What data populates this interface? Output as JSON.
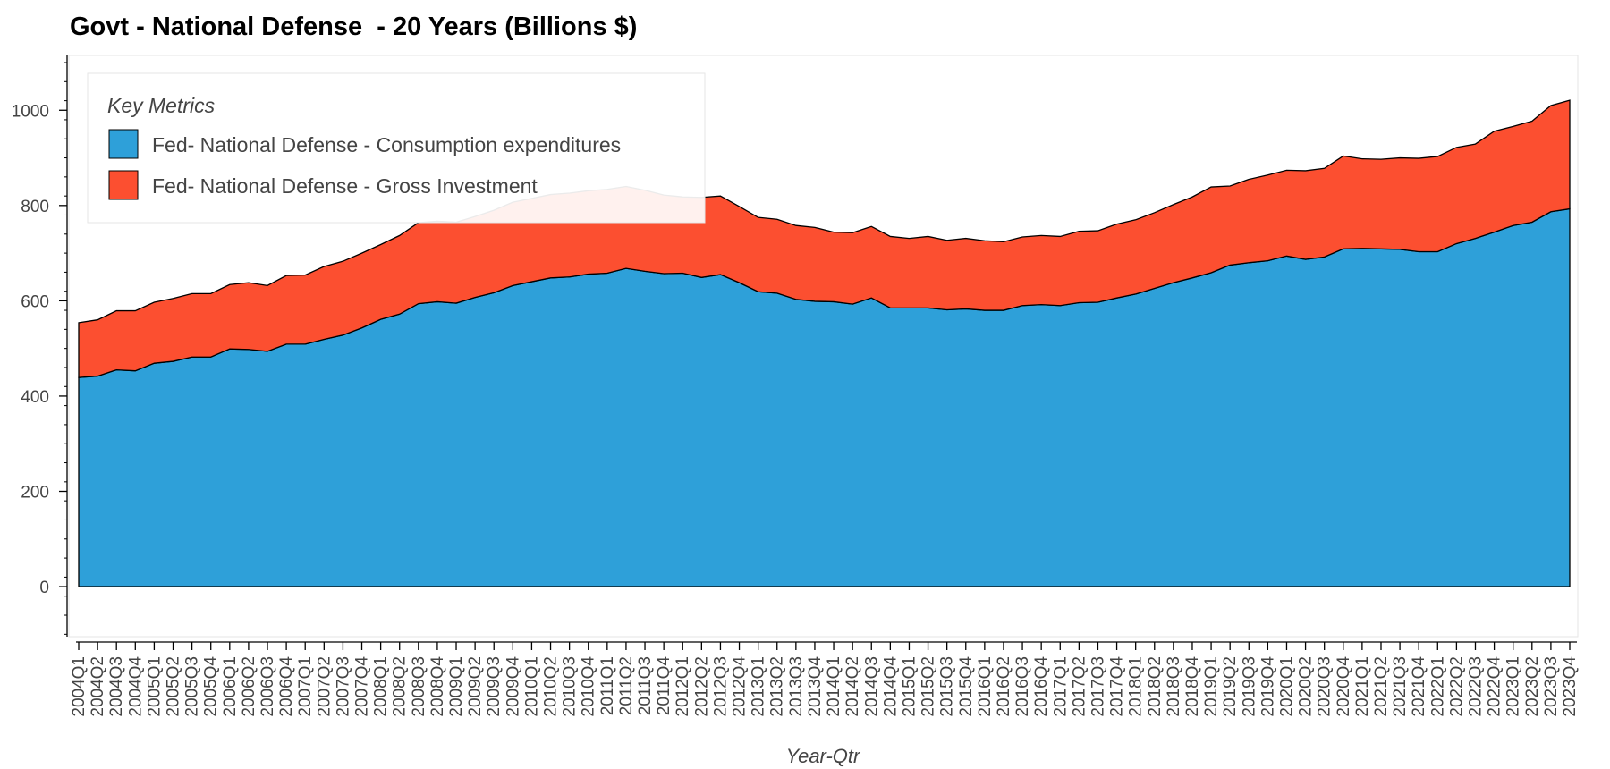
{
  "chart_data": {
    "type": "area",
    "stacked": true,
    "title": "Govt - National Defense  - 20 Years (Billions $)",
    "xlabel": "Year-Qtr",
    "ylabel": "",
    "ylim": [
      -105,
      1115
    ],
    "yticks": [
      0,
      200,
      400,
      600,
      800,
      1000
    ],
    "grid": false,
    "legend": {
      "title": "Key Metrics",
      "placement": "top-left"
    },
    "categories": [
      "2004Q1",
      "2004Q2",
      "2004Q3",
      "2004Q4",
      "2005Q1",
      "2005Q2",
      "2005Q3",
      "2005Q4",
      "2006Q1",
      "2006Q2",
      "2006Q3",
      "2006Q4",
      "2007Q1",
      "2007Q2",
      "2007Q3",
      "2007Q4",
      "2008Q1",
      "2008Q2",
      "2008Q3",
      "2008Q4",
      "2009Q1",
      "2009Q2",
      "2009Q3",
      "2009Q4",
      "2010Q1",
      "2010Q2",
      "2010Q3",
      "2010Q4",
      "2011Q1",
      "2011Q2",
      "2011Q3",
      "2011Q4",
      "2012Q1",
      "2012Q2",
      "2012Q3",
      "2012Q4",
      "2013Q1",
      "2013Q2",
      "2013Q3",
      "2013Q4",
      "2014Q1",
      "2014Q2",
      "2014Q3",
      "2014Q4",
      "2015Q1",
      "2015Q2",
      "2015Q3",
      "2015Q4",
      "2016Q1",
      "2016Q2",
      "2016Q3",
      "2016Q4",
      "2017Q1",
      "2017Q2",
      "2017Q3",
      "2017Q4",
      "2018Q1",
      "2018Q2",
      "2018Q3",
      "2018Q4",
      "2019Q1",
      "2019Q2",
      "2019Q3",
      "2019Q4",
      "2020Q1",
      "2020Q2",
      "2020Q3",
      "2020Q4",
      "2021Q1",
      "2021Q2",
      "2021Q3",
      "2021Q4",
      "2022Q1",
      "2022Q2",
      "2022Q3",
      "2022Q4",
      "2023Q1",
      "2023Q2",
      "2023Q3",
      "2023Q4"
    ],
    "series": [
      {
        "name": "Fed- National Defense - Consumption expenditures",
        "color": "#2ea0d9",
        "values": [
          439,
          442,
          455,
          453,
          469,
          473,
          482,
          482,
          499,
          498,
          494,
          509,
          509,
          519,
          528,
          543,
          561,
          572,
          594,
          598,
          595,
          607,
          617,
          632,
          640,
          648,
          650,
          656,
          658,
          668,
          662,
          657,
          658,
          649,
          655,
          638,
          619,
          616,
          603,
          599,
          598,
          593,
          606,
          585,
          585,
          585,
          581,
          583,
          580,
          580,
          590,
          592,
          590,
          596,
          597,
          606,
          614,
          626,
          638,
          648,
          659,
          675,
          680,
          684,
          694,
          687,
          692,
          709,
          710,
          709,
          708,
          703,
          703,
          720,
          731,
          744,
          758,
          765,
          787,
          793
        ]
      },
      {
        "name": "Fed- National Defense - Gross Investment",
        "color": "#fc4f30",
        "values": [
          115,
          118,
          124,
          126,
          128,
          132,
          133,
          133,
          135,
          140,
          138,
          144,
          145,
          153,
          155,
          157,
          157,
          165,
          170,
          169,
          170,
          170,
          173,
          175,
          175,
          175,
          176,
          175,
          176,
          172,
          170,
          165,
          160,
          168,
          165,
          160,
          156,
          155,
          155,
          155,
          146,
          150,
          150,
          150,
          146,
          150,
          146,
          148,
          146,
          144,
          144,
          145,
          145,
          150,
          150,
          155,
          156,
          159,
          164,
          170,
          180,
          166,
          175,
          180,
          180,
          186,
          186,
          195,
          188,
          188,
          192,
          196,
          200,
          202,
          198,
          212,
          208,
          212,
          223,
          228
        ]
      }
    ]
  }
}
